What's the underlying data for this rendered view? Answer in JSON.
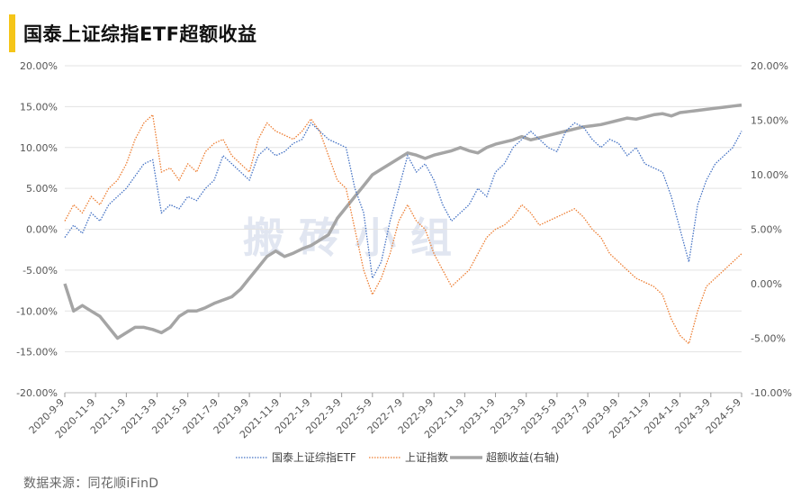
{
  "title": "国泰上证综指ETF超额收益",
  "source": "数据来源：同花顺iFinD",
  "watermark": "搬 砖 小 组",
  "chart_data": {
    "type": "line",
    "title": "国泰上证综指ETF超额收益",
    "left_axis": {
      "ylim": [
        -20,
        20
      ],
      "ticks": [
        20,
        15,
        10,
        5,
        0,
        -5,
        -10,
        -15,
        -20
      ],
      "tick_labels": [
        "20.00%",
        "15.00%",
        "10.00%",
        "5.00%",
        "0.00%",
        "-5.00%",
        "-10.00%",
        "-15.00%",
        "-20.00%"
      ]
    },
    "right_axis": {
      "ylim": [
        -10,
        20
      ],
      "ticks": [
        20,
        15,
        10,
        5,
        0,
        -5,
        -10
      ],
      "tick_labels": [
        "20.00%",
        "15.00%",
        "10.00%",
        "5.00%",
        "0.00%",
        "-5.00%",
        "-10.00%"
      ]
    },
    "x_tick_labels": [
      "2020-9-9",
      "2020-11-9",
      "2021-1-9",
      "2021-3-9",
      "2021-5-9",
      "2021-7-9",
      "2021-9-9",
      "2021-11-9",
      "2022-1-9",
      "2022-3-9",
      "2022-5-9",
      "2022-7-9",
      "2022-9-9",
      "2022-11-9",
      "2023-1-9",
      "2023-3-9",
      "2023-5-9",
      "2023-7-9",
      "2023-9-9",
      "2023-11-9",
      "2024-1-9",
      "2024-3-9",
      "2024-5-9"
    ],
    "legend": [
      "国泰上证综指ETF",
      "上证指数",
      "超额收益(右轴)"
    ],
    "series": [
      {
        "name": "国泰上证综指ETF",
        "axis": "left",
        "color": "#4472c4",
        "style": "dotted",
        "values": [
          -1,
          0.5,
          -0.5,
          2,
          1,
          3,
          4,
          5,
          6.5,
          8,
          8.5,
          2,
          3,
          2.5,
          4,
          3.5,
          5,
          6,
          9,
          8,
          7,
          6,
          9,
          10,
          9,
          9.5,
          10.5,
          11,
          13,
          12,
          11,
          10.5,
          10,
          5,
          2,
          -6,
          -4,
          1,
          5,
          9,
          7,
          8,
          6,
          3,
          1,
          2,
          3,
          5,
          4,
          7,
          8,
          10,
          11,
          12,
          11,
          10,
          9.5,
          12,
          13,
          12.5,
          11,
          10,
          11,
          10.5,
          9,
          10,
          8,
          7.5,
          7,
          4,
          0,
          -4,
          3,
          6,
          8,
          9,
          10,
          12
        ]
      },
      {
        "name": "上证指数",
        "axis": "left",
        "color": "#ed7d31",
        "style": "dotted",
        "values": [
          1,
          3,
          2,
          4,
          3,
          5,
          6,
          8,
          11,
          13,
          14,
          7,
          7.5,
          6,
          8,
          7,
          9.5,
          10.5,
          11,
          9,
          8,
          7,
          11,
          13,
          12,
          11.5,
          11,
          12,
          13.5,
          12,
          9,
          6,
          5,
          0,
          -5,
          -8,
          -6,
          -3,
          1,
          3,
          1,
          0,
          -3,
          -5,
          -7,
          -6,
          -5,
          -3,
          -1,
          0,
          0.5,
          1.5,
          3,
          2,
          0.5,
          1,
          1.5,
          2,
          2.5,
          1.5,
          0,
          -1,
          -3,
          -4,
          -5,
          -6,
          -6.5,
          -7,
          -8,
          -11,
          -13,
          -14,
          -10,
          -7,
          -6,
          -5,
          -4,
          -3
        ]
      },
      {
        "name": "超额收益(右轴)",
        "axis": "right",
        "color": "#a5a5a5",
        "style": "solid",
        "values": [
          0,
          -2.5,
          -2,
          -2.5,
          -3,
          -4,
          -5,
          -4.5,
          -4,
          -4,
          -4.2,
          -4.5,
          -4,
          -3,
          -2.5,
          -2.5,
          -2.2,
          -1.8,
          -1.5,
          -1.2,
          -0.5,
          0.5,
          1.5,
          2.5,
          3,
          2.5,
          2.8,
          3.2,
          3.5,
          4,
          4.5,
          6,
          7,
          8,
          9,
          10,
          10.5,
          11,
          11.5,
          12,
          11.8,
          11.5,
          11.8,
          12,
          12.2,
          12.5,
          12.2,
          12,
          12.5,
          12.8,
          13,
          13.2,
          13.5,
          13.2,
          13.4,
          13.6,
          13.8,
          14,
          14.2,
          14.4,
          14.5,
          14.6,
          14.8,
          15,
          15.2,
          15.1,
          15.3,
          15.5,
          15.6,
          15.4,
          15.7,
          15.8,
          15.9,
          16,
          16.1,
          16.2,
          16.3,
          16.4
        ]
      }
    ]
  }
}
